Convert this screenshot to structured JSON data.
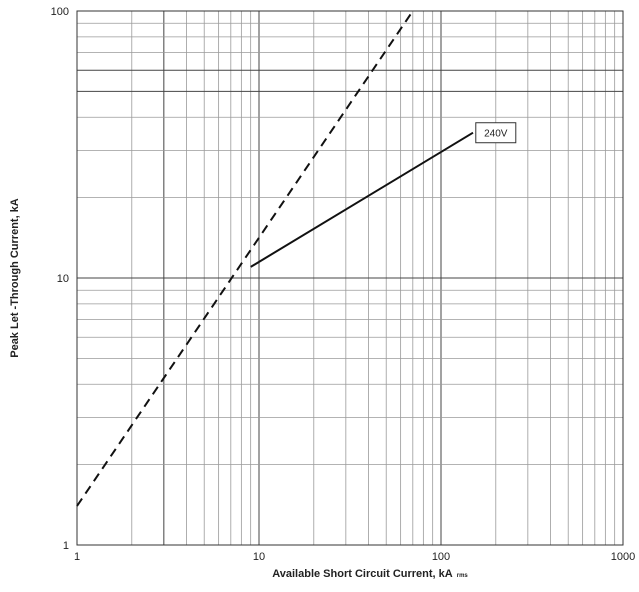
{
  "chart_data": {
    "type": "line",
    "xscale": "log",
    "yscale": "log",
    "xlim": [
      1,
      1000
    ],
    "ylim": [
      1,
      100
    ],
    "xticks": [
      "1",
      "10",
      "100",
      "1000"
    ],
    "yticks": [
      "1",
      "10",
      "100"
    ],
    "xlabel": "Available Short Circuit Current, kA",
    "xlabel_sub": "rms",
    "ylabel": "Peak Let -Through Current, kA",
    "grid": true,
    "highlighted_gridlines": {
      "x": [
        3
      ],
      "y": [
        50,
        60
      ]
    },
    "series": [
      {
        "name": "240V",
        "style": "solid",
        "x": [
          9,
          150
        ],
        "y": [
          11,
          35
        ]
      },
      {
        "style": "dashed",
        "x": [
          1,
          70
        ],
        "y": [
          1.4,
          100
        ]
      }
    ],
    "annotations": [
      {
        "text": "240V",
        "x": 200,
        "y": 35
      }
    ]
  }
}
